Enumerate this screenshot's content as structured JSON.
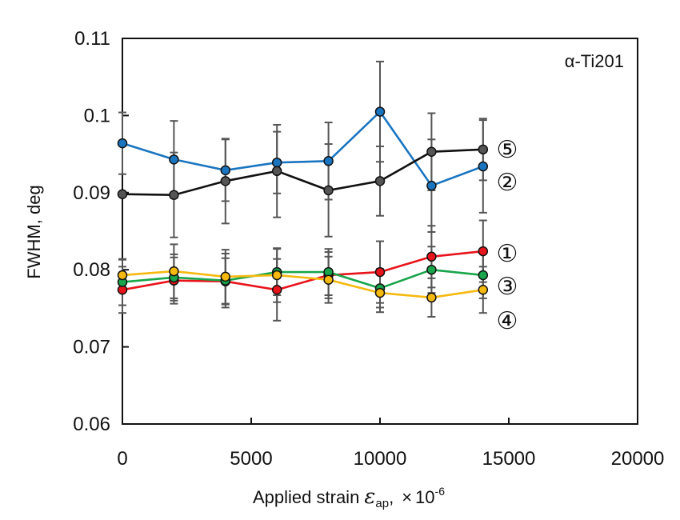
{
  "chart_data": {
    "type": "line",
    "title": "",
    "annotation": "α-Ti201",
    "xlabel": "Applied strain ε_ap, ×10^-6",
    "xlabel_parts": {
      "main": "Applied strain ",
      "symbol": "ε",
      "subscript": "ap",
      "comma": ",",
      "times": "×",
      "base": "10",
      "exponent": "-6"
    },
    "ylabel": "FWHM, deg",
    "xlim": [
      0,
      20000
    ],
    "ylim": [
      0.06,
      0.11
    ],
    "xticks": [
      0,
      5000,
      10000,
      15000,
      20000
    ],
    "xtick_labels": [
      "0",
      "5000",
      "10000",
      "15000",
      "20000"
    ],
    "yticks": [
      0.06,
      0.07,
      0.08,
      0.09,
      0.1,
      0.11
    ],
    "ytick_labels": [
      "0.06",
      "0.07",
      "0.08",
      "0.09",
      "0.1",
      "0.11"
    ],
    "grid": false,
    "legend": "inline labels at right end of each series",
    "x": [
      0,
      2000,
      4000,
      6000,
      8000,
      10000,
      12000,
      14000
    ],
    "series": [
      {
        "name": "①",
        "color": "#e8141b",
        "values": [
          0.0774,
          0.0786,
          0.0785,
          0.0774,
          0.0793,
          0.0797,
          0.0817,
          0.0824
        ],
        "errors": [
          0.003,
          0.003,
          0.003,
          0.004,
          0.003,
          0.004,
          0.004,
          0.004
        ]
      },
      {
        "name": "②",
        "color": "#1a75c0",
        "values": [
          0.0964,
          0.0943,
          0.0929,
          0.0939,
          0.0941,
          0.1005,
          0.0909,
          0.0934
        ],
        "errors": [
          0.004,
          0.005,
          0.004,
          0.004,
          0.005,
          0.0065,
          0.006,
          0.006
        ]
      },
      {
        "name": "③",
        "color": "#18a54b",
        "values": [
          0.0784,
          0.079,
          0.0786,
          0.0797,
          0.0797,
          0.0776,
          0.08,
          0.0793
        ],
        "errors": [
          0.003,
          0.003,
          0.0035,
          0.003,
          0.003,
          0.0025,
          0.003,
          0.003
        ]
      },
      {
        "name": "④",
        "color": "#f5b90f",
        "values": [
          0.0793,
          0.0798,
          0.0791,
          0.0793,
          0.0787,
          0.077,
          0.0764,
          0.0774
        ],
        "errors": [
          0.002,
          0.0035,
          0.0035,
          0.0035,
          0.003,
          0.0025,
          0.0025,
          0.003
        ]
      },
      {
        "name": "⑤",
        "color": "#111111",
        "marker_color": "#555555",
        "values": [
          0.0898,
          0.0897,
          0.0915,
          0.0928,
          0.0903,
          0.0915,
          0.0953,
          0.0956
        ],
        "errors": [
          0.0,
          0.0055,
          0.0055,
          0.006,
          0.006,
          0.0045,
          0.005,
          0.004
        ]
      }
    ],
    "label_order_y": [
      "⑤",
      "②",
      "①",
      "③",
      "④"
    ]
  }
}
